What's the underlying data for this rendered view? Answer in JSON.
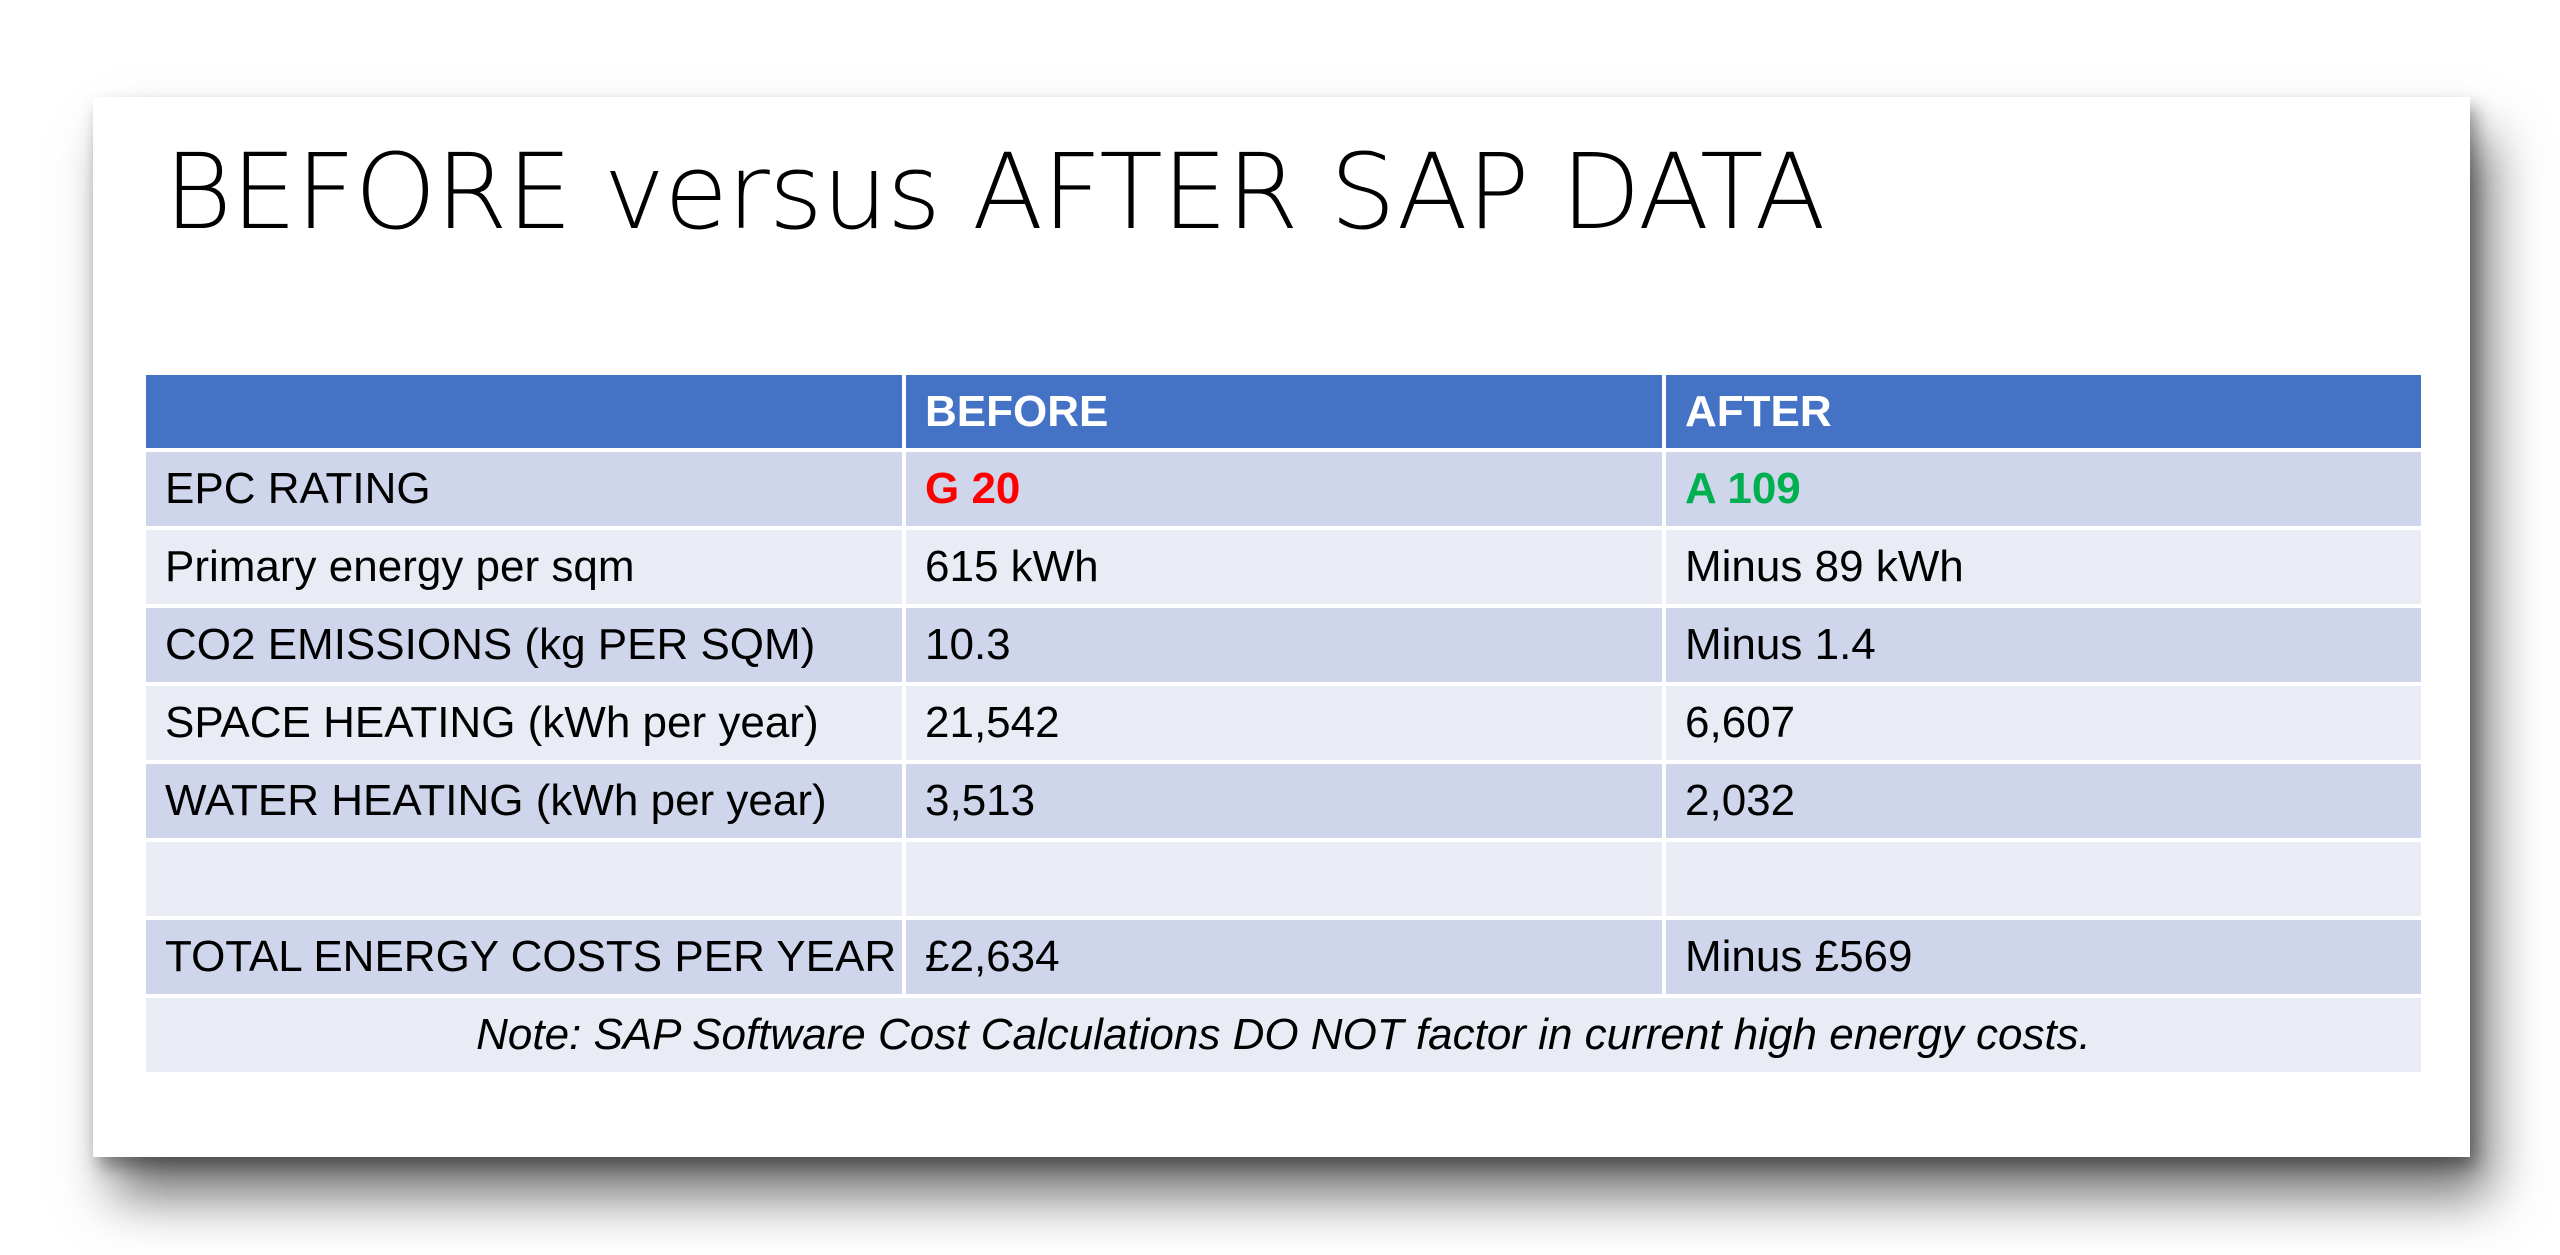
{
  "slide": {
    "title": "BEFORE versus AFTER SAP DATA"
  },
  "table": {
    "headers": [
      "",
      "BEFORE",
      "AFTER"
    ],
    "rows": [
      [
        "EPC RATING",
        "G 20",
        "A 109"
      ],
      [
        "Primary energy per sqm",
        "615 kWh",
        "Minus 89 kWh"
      ],
      [
        "CO2 EMISSIONS (kg PER SQM)",
        "10.3",
        "Minus 1.4"
      ],
      [
        "SPACE HEATING (kWh per year)",
        "21,542",
        "6,607"
      ],
      [
        "WATER HEATING (kWh per year)",
        "3,513",
        "2,032"
      ],
      [
        "",
        "",
        ""
      ],
      [
        "TOTAL ENERGY COSTS PER YEAR",
        "£2,634",
        "Minus £569"
      ]
    ],
    "note": "Note: SAP Software Cost Calculations DO NOT factor in current high energy costs."
  },
  "colors": {
    "header_bg": "#4472c4",
    "row_odd": "#cfd5ea",
    "row_even": "#e9ebf5",
    "rating_before": "#ff0000",
    "rating_after": "#00b050"
  }
}
